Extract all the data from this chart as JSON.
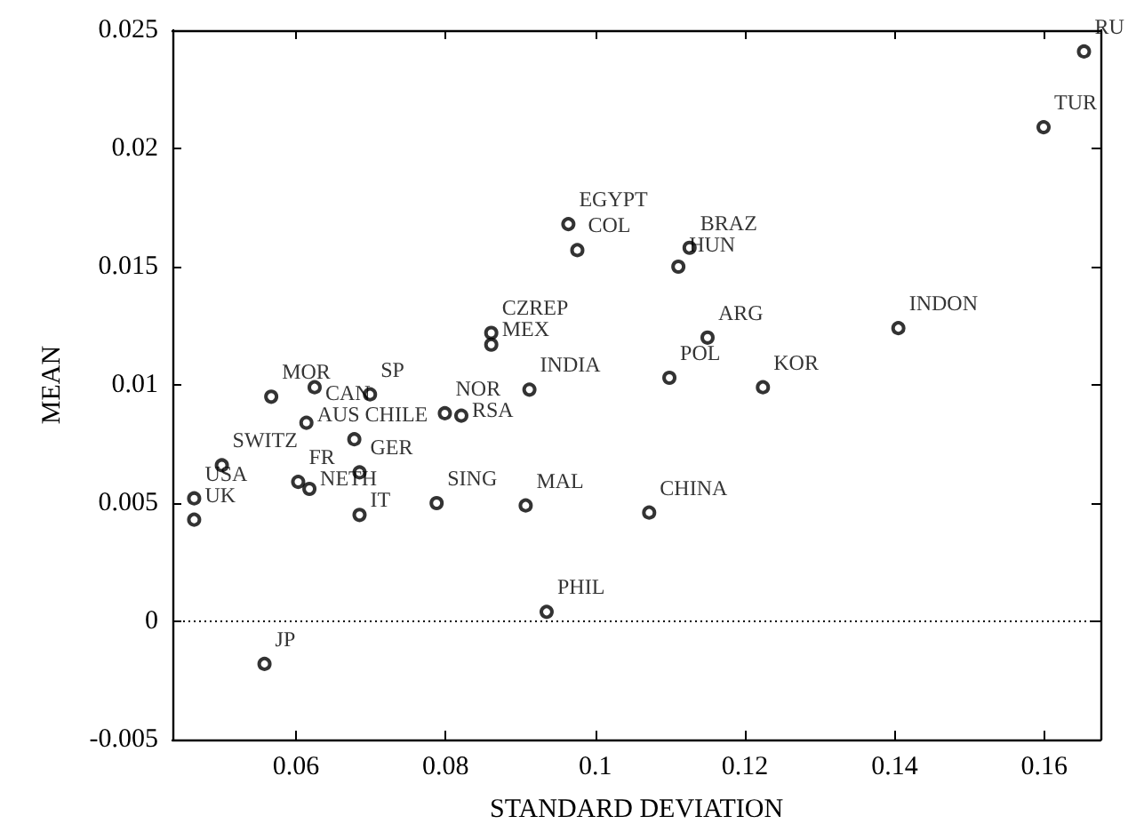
{
  "chart_data": {
    "type": "scatter",
    "xlabel": "STANDARD DEVIATION",
    "ylabel": "MEAN",
    "x": [
      0.0567,
      0.0625,
      0.0699,
      0.0614,
      0.0678,
      0.0501,
      0.0464,
      0.0464,
      0.0603,
      0.0618,
      0.0685,
      0.0685,
      0.0788,
      0.0799,
      0.0821,
      0.0861,
      0.0861,
      0.0964,
      0.0976,
      0.1126,
      0.1111,
      0.115,
      0.1099,
      0.1224,
      0.0912,
      0.0907,
      0.1072,
      0.0935,
      0.1653,
      0.1599,
      0.1405,
      0.0558
    ],
    "values": [
      0.0095,
      0.0099,
      0.0096,
      0.0084,
      0.0077,
      0.0066,
      0.0052,
      0.0043,
      0.0059,
      0.0056,
      0.0063,
      0.0045,
      0.005,
      0.0088,
      0.0087,
      0.0122,
      0.0117,
      0.0168,
      0.0157,
      0.0158,
      0.015,
      0.012,
      0.0103,
      0.0099,
      0.0098,
      0.0049,
      0.0046,
      0.0004,
      0.0241,
      0.0209,
      0.0124,
      -0.0018
    ],
    "color": "#000000",
    "marker": "circle",
    "grid": false,
    "xlim": [
      0.0435,
      0.1675
    ],
    "xticks": [
      0.06,
      0.08,
      0.1,
      0.12,
      0.14,
      0.16
    ],
    "ylim": [
      -0.005,
      0.025
    ],
    "yticks": [
      -0.005,
      0,
      0.005,
      0.01,
      0.015,
      0.02,
      0.025
    ],
    "ref_lines": [
      {
        "axis": "y",
        "value": 0,
        "line_style": "dotted",
        "color": "#000000"
      }
    ],
    "annotations": [
      {
        "text": "MOR",
        "x": 0.0567,
        "y": 0.0095
      },
      {
        "text": "CAN",
        "x": 0.0625,
        "y": 0.0099
      },
      {
        "text": "SP",
        "x": 0.0699,
        "y": 0.0096
      },
      {
        "text": "AUS",
        "x": 0.0614,
        "y": 0.0084
      },
      {
        "text": "CHILE",
        "x": 0.0678,
        "y": 0.0077
      },
      {
        "text": "SWITZ",
        "x": 0.0501,
        "y": 0.0066
      },
      {
        "text": "USA",
        "x": 0.0464,
        "y": 0.0052
      },
      {
        "text": "UK",
        "x": 0.0464,
        "y": 0.0043
      },
      {
        "text": "FR",
        "x": 0.0603,
        "y": 0.0059
      },
      {
        "text": "NETH",
        "x": 0.0618,
        "y": 0.0056
      },
      {
        "text": "GER",
        "x": 0.0685,
        "y": 0.0063
      },
      {
        "text": "IT",
        "x": 0.0685,
        "y": 0.0045
      },
      {
        "text": "SING",
        "x": 0.0788,
        "y": 0.005
      },
      {
        "text": "NOR",
        "x": 0.0799,
        "y": 0.0088
      },
      {
        "text": "RSA",
        "x": 0.0821,
        "y": 0.0087
      },
      {
        "text": "CZREP",
        "x": 0.0861,
        "y": 0.0122
      },
      {
        "text": "MEX",
        "x": 0.0861,
        "y": 0.0117
      },
      {
        "text": "EGYPT",
        "x": 0.0964,
        "y": 0.0168
      },
      {
        "text": "COL",
        "x": 0.0976,
        "y": 0.0157
      },
      {
        "text": "BRAZ",
        "x": 0.1126,
        "y": 0.0158
      },
      {
        "text": "HUN",
        "x": 0.1111,
        "y": 0.015
      },
      {
        "text": "ARG",
        "x": 0.115,
        "y": 0.012
      },
      {
        "text": "POL",
        "x": 0.1099,
        "y": 0.0103
      },
      {
        "text": "KOR",
        "x": 0.1224,
        "y": 0.0099
      },
      {
        "text": "INDIA",
        "x": 0.0912,
        "y": 0.0098
      },
      {
        "text": "MAL",
        "x": 0.0907,
        "y": 0.0049
      },
      {
        "text": "CHINA",
        "x": 0.1072,
        "y": 0.0046
      },
      {
        "text": "PHIL",
        "x": 0.0935,
        "y": 0.0004
      },
      {
        "text": "RU",
        "x": 0.1653,
        "y": 0.0241
      },
      {
        "text": "TUR",
        "x": 0.1599,
        "y": 0.0209
      },
      {
        "text": "INDON",
        "x": 0.1405,
        "y": 0.0124
      },
      {
        "text": "JP",
        "x": 0.0558,
        "y": -0.0018
      }
    ]
  }
}
